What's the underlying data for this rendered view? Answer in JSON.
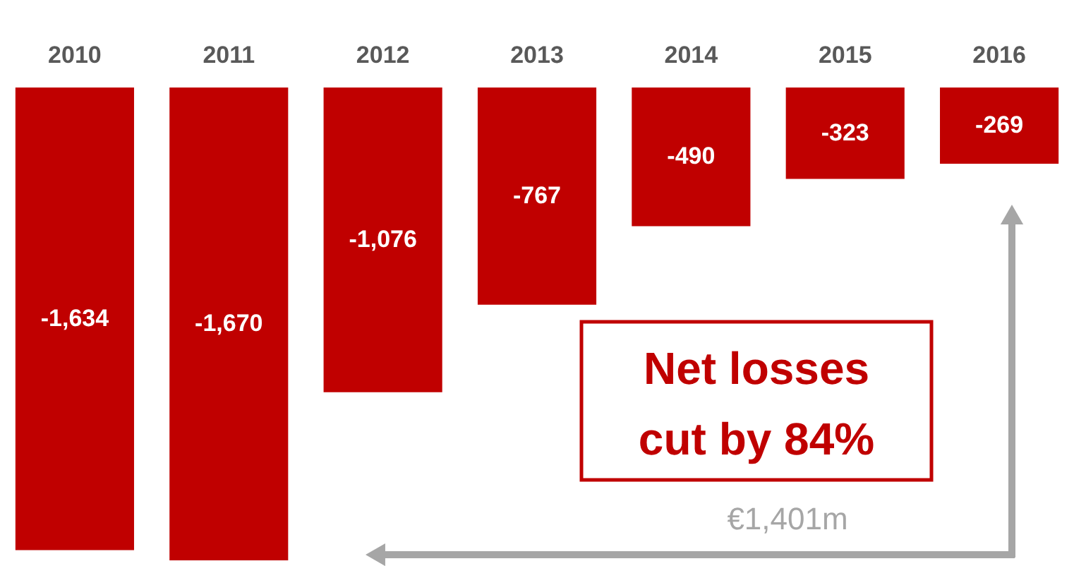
{
  "chart_data": {
    "type": "bar",
    "categories": [
      "2010",
      "2011",
      "2012",
      "2013",
      "2014",
      "2015",
      "2016"
    ],
    "values": [
      -1634,
      -1670,
      -1076,
      -767,
      -490,
      -323,
      -269
    ],
    "color": "#c00000",
    "value_labels": [
      "-1,634",
      "-1,670",
      "-1,076",
      "-767",
      "-490",
      "-323",
      "-269"
    ],
    "annotations": [
      "Net losses cut by 84%",
      "€1,401m"
    ]
  }
}
